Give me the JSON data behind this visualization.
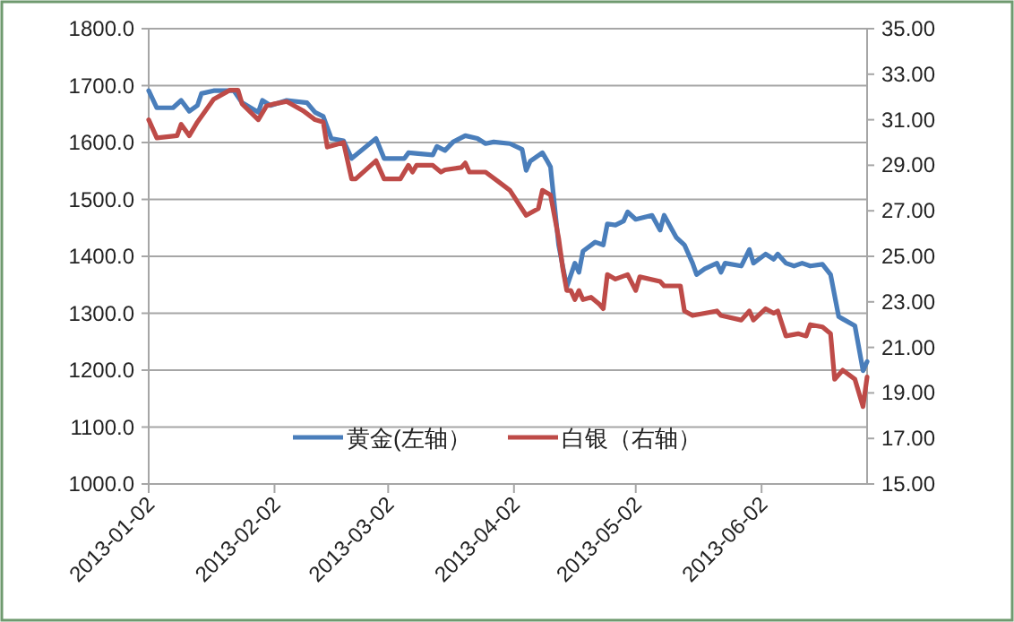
{
  "chart_data": {
    "type": "line",
    "xlim": [
      "2013-01-02",
      "2013-06-28"
    ],
    "xticks": [
      "2013-01-02",
      "2013-02-02",
      "2013-03-02",
      "2013-04-02",
      "2013-05-02",
      "2013-06-02"
    ],
    "ylim": [
      1000,
      1800
    ],
    "yticks": [
      {
        "value": 1000,
        "label": "1000.0"
      },
      {
        "value": 1100,
        "label": "1100.0"
      },
      {
        "value": 1200,
        "label": "1200.0"
      },
      {
        "value": 1300,
        "label": "1300.0"
      },
      {
        "value": 1400,
        "label": "1400.0"
      },
      {
        "value": 1500,
        "label": "1500.0"
      },
      {
        "value": 1600,
        "label": "1600.0"
      },
      {
        "value": 1700,
        "label": "1700.0"
      },
      {
        "value": 1800,
        "label": "1800.0"
      }
    ],
    "y2lim": [
      15,
      35
    ],
    "y2ticks": [
      {
        "value": 15,
        "label": "15.00"
      },
      {
        "value": 17,
        "label": "17.00"
      },
      {
        "value": 19,
        "label": "19.00"
      },
      {
        "value": 21,
        "label": "21.00"
      },
      {
        "value": 23,
        "label": "23.00"
      },
      {
        "value": 25,
        "label": "25.00"
      },
      {
        "value": 27,
        "label": "27.00"
      },
      {
        "value": 29,
        "label": "29.00"
      },
      {
        "value": 31,
        "label": "31.00"
      },
      {
        "value": 33,
        "label": "33.00"
      },
      {
        "value": 35,
        "label": "35.00"
      }
    ],
    "grid": "y",
    "legend": "bottom",
    "marker": "none",
    "line_style": "solid",
    "series": [
      {
        "name": "黄金(左轴）",
        "color": "#4a7ebb",
        "x": [
          "2013-01-02",
          "2013-01-04",
          "2013-01-08",
          "2013-01-10",
          "2013-01-12",
          "2013-01-14",
          "2013-01-15",
          "2013-01-18",
          "2013-01-23",
          "2013-01-25",
          "2013-01-29",
          "2013-01-30",
          "2013-02-01",
          "2013-02-05",
          "2013-02-10",
          "2013-02-12",
          "2013-02-14",
          "2013-02-16",
          "2013-02-19",
          "2013-02-21",
          "2013-02-27",
          "2013-03-01",
          "2013-03-06",
          "2013-03-07",
          "2013-03-13",
          "2013-03-14",
          "2013-03-16",
          "2013-03-18",
          "2013-03-21",
          "2013-03-24",
          "2013-03-26",
          "2013-03-28",
          "2013-04-01",
          "2013-04-04",
          "2013-04-05",
          "2013-04-06",
          "2013-04-09",
          "2013-04-10",
          "2013-04-11",
          "2013-04-13",
          "2013-04-15",
          "2013-04-17",
          "2013-04-18",
          "2013-04-19",
          "2013-04-22",
          "2013-04-24",
          "2013-04-25",
          "2013-04-27",
          "2013-04-29",
          "2013-04-30",
          "2013-05-02",
          "2013-05-06",
          "2013-05-08",
          "2013-05-09",
          "2013-05-12",
          "2013-05-14",
          "2013-05-16",
          "2013-05-17",
          "2013-05-19",
          "2013-05-22",
          "2013-05-23",
          "2013-05-24",
          "2013-05-28",
          "2013-05-30",
          "2013-05-31",
          "2013-06-03",
          "2013-06-05",
          "2013-06-06",
          "2013-06-08",
          "2013-06-10",
          "2013-06-12",
          "2013-06-14",
          "2013-06-17",
          "2013-06-19",
          "2013-06-21",
          "2013-06-22",
          "2013-06-25",
          "2013-06-27",
          "2013-06-28"
        ],
        "values": [
          1691,
          1661,
          1661,
          1674,
          1655,
          1665,
          1686,
          1691,
          1691,
          1670,
          1653,
          1674,
          1665,
          1674,
          1670,
          1653,
          1646,
          1607,
          1603,
          1572,
          1607,
          1572,
          1572,
          1582,
          1578,
          1593,
          1586,
          1601,
          1612,
          1607,
          1598,
          1601,
          1598,
          1588,
          1551,
          1567,
          1582,
          1570,
          1557,
          1420,
          1346,
          1388,
          1372,
          1409,
          1425,
          1420,
          1457,
          1455,
          1462,
          1478,
          1465,
          1472,
          1446,
          1472,
          1433,
          1420,
          1388,
          1368,
          1378,
          1388,
          1372,
          1388,
          1383,
          1412,
          1388,
          1404,
          1395,
          1404,
          1388,
          1383,
          1388,
          1383,
          1386,
          1368,
          1294,
          1290,
          1278,
          1199,
          1215
        ]
      },
      {
        "name": "白银（右轴）",
        "color": "#be4b48",
        "axis": "y2",
        "x": [
          "2013-01-02",
          "2013-01-04",
          "2013-01-09",
          "2013-01-10",
          "2013-01-12",
          "2013-01-14",
          "2013-01-16",
          "2013-01-18",
          "2013-01-22",
          "2013-01-24",
          "2013-01-25",
          "2013-01-29",
          "2013-01-31",
          "2013-02-02",
          "2013-02-05",
          "2013-02-09",
          "2013-02-12",
          "2013-02-14",
          "2013-02-15",
          "2013-02-19",
          "2013-02-21",
          "2013-02-22",
          "2013-02-27",
          "2013-03-01",
          "2013-03-05",
          "2013-03-07",
          "2013-03-08",
          "2013-03-09",
          "2013-03-13",
          "2013-03-15",
          "2013-03-16",
          "2013-03-20",
          "2013-03-21",
          "2013-03-22",
          "2013-03-26",
          "2013-03-29",
          "2013-04-01",
          "2013-04-05",
          "2013-04-08",
          "2013-04-09",
          "2013-04-11",
          "2013-04-13",
          "2013-04-14",
          "2013-04-15",
          "2013-04-16",
          "2013-04-17",
          "2013-04-18",
          "2013-04-19",
          "2013-04-21",
          "2013-04-23",
          "2013-04-24",
          "2013-04-25",
          "2013-04-27",
          "2013-04-30",
          "2013-05-02",
          "2013-05-03",
          "2013-05-08",
          "2013-05-09",
          "2013-05-13",
          "2013-05-14",
          "2013-05-16",
          "2013-05-22",
          "2013-05-23",
          "2013-05-28",
          "2013-05-30",
          "2013-05-31",
          "2013-06-03",
          "2013-06-05",
          "2013-06-06",
          "2013-06-08",
          "2013-06-11",
          "2013-06-13",
          "2013-06-14",
          "2013-06-17",
          "2013-06-19",
          "2013-06-20",
          "2013-06-22",
          "2013-06-25",
          "2013-06-27",
          "2013-06-28"
        ],
        "values": [
          31.0,
          30.2,
          30.3,
          30.8,
          30.3,
          30.9,
          31.4,
          31.9,
          32.3,
          32.3,
          31.7,
          31.0,
          31.6,
          31.7,
          31.8,
          31.4,
          31.0,
          30.9,
          29.8,
          30.0,
          28.4,
          28.4,
          29.2,
          28.4,
          28.4,
          29.0,
          28.7,
          29.0,
          29.0,
          28.7,
          28.8,
          28.9,
          29.1,
          28.7,
          28.7,
          28.3,
          27.9,
          26.8,
          27.1,
          27.9,
          27.7,
          25.8,
          24.5,
          23.5,
          23.5,
          23.1,
          23.5,
          23.1,
          23.2,
          22.9,
          22.7,
          24.2,
          24.0,
          24.2,
          23.5,
          24.1,
          23.9,
          23.7,
          23.7,
          22.6,
          22.4,
          22.6,
          22.4,
          22.2,
          22.6,
          22.2,
          22.7,
          22.5,
          22.6,
          21.5,
          21.6,
          21.5,
          22.0,
          21.9,
          21.6,
          19.6,
          20.0,
          19.6,
          18.4,
          19.7
        ]
      }
    ]
  }
}
